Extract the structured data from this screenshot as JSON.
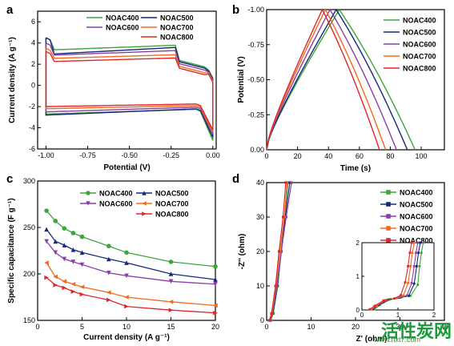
{
  "figure_type": "4-panel electrochemistry figure",
  "colors": {
    "NOAC400": "#3aa63a",
    "NOAC500": "#16287a",
    "NOAC600": "#8a3fa8",
    "NOAC700": "#f26a1b",
    "NOAC800": "#e0262b"
  },
  "watermark": {
    "text": "活性炭网",
    "url": "www.hxt7.com"
  },
  "chart_data": [
    {
      "panel": "a",
      "type": "line",
      "subtype": "cyclic voltammetry loops",
      "title": "",
      "xlabel": "Potential (V)",
      "ylabel": "Current density (A g⁻¹)",
      "xlim": [
        -1.05,
        0.02
      ],
      "ylim": [
        -6,
        7
      ],
      "xticks": [
        "-1.00",
        "-0.75",
        "-0.50",
        "-0.25",
        "0.00"
      ],
      "yticks": [
        "-6",
        "-4",
        "-2",
        "0",
        "2",
        "4",
        "6"
      ],
      "legend": [
        "NOAC400",
        "NOAC500",
        "NOAC600",
        "NOAC700",
        "NOAC800"
      ],
      "legend_layout": "top, two columns",
      "series": [
        {
          "name": "NOAC400",
          "upper_start": 4.5,
          "upper_slope_end": 3.8,
          "plateau": 2.2,
          "lower_start": -2.7,
          "lower_plateau": -2.25,
          "end": -5.2
        },
        {
          "name": "NOAC500",
          "upper_start": 4.5,
          "upper_slope_end": 3.6,
          "plateau": 2.1,
          "lower_start": -2.8,
          "lower_plateau": -2.2,
          "end": -4.9
        },
        {
          "name": "NOAC600",
          "upper_start": 4.0,
          "upper_slope_end": 3.3,
          "plateau": 2.0,
          "lower_start": -2.5,
          "lower_plateau": -2.05,
          "end": -4.6
        },
        {
          "name": "NOAC700",
          "upper_start": 3.5,
          "upper_slope_end": 2.9,
          "plateau": 1.9,
          "lower_start": -2.2,
          "lower_plateau": -1.9,
          "end": -4.4
        },
        {
          "name": "NOAC800",
          "upper_start": 3.2,
          "upper_slope_end": 2.6,
          "plateau": 1.8,
          "lower_start": -2.0,
          "lower_plateau": -1.75,
          "end": -4.2
        }
      ]
    },
    {
      "panel": "b",
      "type": "line",
      "subtype": "galvanostatic charge-discharge",
      "title": "",
      "xlabel": "Time (s)",
      "ylabel": "Potential (V)",
      "xlim": [
        0,
        115
      ],
      "ylim": [
        0,
        -1
      ],
      "xticks": [
        "0",
        "20",
        "40",
        "60",
        "80",
        "100"
      ],
      "yticks": [
        "0.00",
        "-0.25",
        "-0.50",
        "-0.75",
        "-1.00"
      ],
      "legend": [
        "NOAC400",
        "NOAC500",
        "NOAC600",
        "NOAC700",
        "NOAC800"
      ],
      "legend_layout": "right, one column",
      "series": [
        {
          "name": "NOAC400",
          "peak_time": 47,
          "end_time": 96
        },
        {
          "name": "NOAC500",
          "peak_time": 45,
          "end_time": 91
        },
        {
          "name": "NOAC600",
          "peak_time": 41,
          "end_time": 84
        },
        {
          "name": "NOAC700",
          "peak_time": 38,
          "end_time": 77
        },
        {
          "name": "NOAC800",
          "peak_time": 36,
          "end_time": 73
        }
      ]
    },
    {
      "panel": "c",
      "type": "line",
      "title": "",
      "xlabel": "Current density (A g⁻¹)",
      "ylabel": "Specific capacitance (F g⁻¹)",
      "xlim": [
        0,
        20
      ],
      "ylim": [
        150,
        300
      ],
      "xticks": [
        "0",
        "5",
        "10",
        "15",
        "20"
      ],
      "yticks": [
        "150",
        "200",
        "250",
        "300"
      ],
      "x": [
        1,
        2,
        3,
        4,
        5,
        8,
        10,
        15,
        20
      ],
      "legend": [
        "NOAC400",
        "NOAC500",
        "NOAC600",
        "NOAC700",
        "NOAC800"
      ],
      "legend_layout": "top-right, two columns",
      "series": [
        {
          "name": "NOAC400",
          "marker": "circle",
          "values": [
            268,
            257,
            249,
            244,
            240,
            230,
            223,
            213,
            208
          ]
        },
        {
          "name": "NOAC500",
          "marker": "triangle-up",
          "values": [
            248,
            235,
            231,
            226,
            223,
            216,
            212,
            200,
            194
          ]
        },
        {
          "name": "NOAC600",
          "marker": "triangle-down",
          "values": [
            235,
            223,
            216,
            213,
            210,
            201,
            198,
            192,
            189
          ]
        },
        {
          "name": "NOAC700",
          "marker": "triangle-left",
          "values": [
            212,
            197,
            192,
            189,
            186,
            180,
            175,
            170,
            166
          ]
        },
        {
          "name": "NOAC800",
          "marker": "triangle-right",
          "values": [
            196,
            188,
            185,
            181,
            178,
            172,
            165,
            161,
            158
          ]
        }
      ]
    },
    {
      "panel": "d",
      "type": "scatter",
      "subtype": "Nyquist plot with inset",
      "title": "",
      "xlabel": "Z' (ohm)",
      "ylabel": "-Z'' (ohm)",
      "xlim": [
        0,
        40
      ],
      "ylim": [
        0,
        40
      ],
      "xticks": [
        "0",
        "10",
        "20",
        "30",
        "40"
      ],
      "yticks": [
        "0",
        "10",
        "20",
        "30",
        "40"
      ],
      "legend": [
        "NOAC400",
        "NOAC500",
        "NOAC600",
        "NOAC700",
        "NOAC800"
      ],
      "legend_layout": "right, one column",
      "series": [
        {
          "name": "NOAC400",
          "x": [
            0.9,
            1.5,
            2.5,
            3.3,
            4.1,
            4.8
          ],
          "y": [
            0,
            2,
            10,
            20,
            30,
            40
          ]
        },
        {
          "name": "NOAC500",
          "x": [
            0.8,
            1.4,
            2.4,
            3.3,
            4.2,
            5.2
          ],
          "y": [
            0,
            2,
            10,
            20,
            30,
            40
          ]
        },
        {
          "name": "NOAC600",
          "x": [
            0.7,
            1.3,
            2.3,
            3.3,
            4.4,
            5.6
          ],
          "y": [
            0,
            2,
            10,
            20,
            30,
            40
          ]
        },
        {
          "name": "NOAC700",
          "x": [
            0.7,
            1.2,
            2.1,
            3.0,
            4.0,
            4.6
          ],
          "y": [
            0,
            2,
            10,
            20,
            30,
            40
          ]
        },
        {
          "name": "NOAC800",
          "x": [
            0.6,
            1.1,
            2.0,
            2.8,
            3.7,
            4.3
          ],
          "y": [
            0,
            2,
            10,
            20,
            30,
            40
          ]
        }
      ],
      "inset": {
        "xlim": [
          0,
          2
        ],
        "ylim": [
          0,
          2
        ],
        "xticks": [
          "0",
          "1",
          "2"
        ],
        "yticks": [
          "0",
          "1",
          "2"
        ],
        "series": [
          {
            "name": "NOAC400",
            "x": [
              0.35,
              0.5,
              0.8,
              1.1,
              1.35,
              1.55,
              1.6,
              1.65,
              1.7
            ],
            "y": [
              0.02,
              0.15,
              0.32,
              0.38,
              0.42,
              0.75,
              1.3,
              1.7,
              2.0
            ]
          },
          {
            "name": "NOAC500",
            "x": [
              0.3,
              0.45,
              0.75,
              1.05,
              1.3,
              1.45,
              1.52,
              1.57,
              1.62
            ],
            "y": [
              0.02,
              0.14,
              0.31,
              0.37,
              0.42,
              0.78,
              1.3,
              1.7,
              2.0
            ]
          },
          {
            "name": "NOAC600",
            "x": [
              0.28,
              0.42,
              0.7,
              1.0,
              1.25,
              1.38,
              1.45,
              1.5,
              1.55
            ],
            "y": [
              0.02,
              0.14,
              0.3,
              0.36,
              0.43,
              0.8,
              1.3,
              1.7,
              2.0
            ]
          },
          {
            "name": "NOAC700",
            "x": [
              0.25,
              0.4,
              0.65,
              0.95,
              1.15,
              1.28,
              1.35,
              1.4,
              1.45
            ],
            "y": [
              0.02,
              0.13,
              0.29,
              0.35,
              0.43,
              0.8,
              1.3,
              1.7,
              2.0
            ]
          },
          {
            "name": "NOAC800",
            "x": [
              0.22,
              0.35,
              0.6,
              0.9,
              1.08,
              1.2,
              1.28,
              1.33,
              1.38
            ],
            "y": [
              0.02,
              0.12,
              0.28,
              0.34,
              0.44,
              0.82,
              1.3,
              1.7,
              2.0
            ]
          }
        ]
      }
    }
  ]
}
